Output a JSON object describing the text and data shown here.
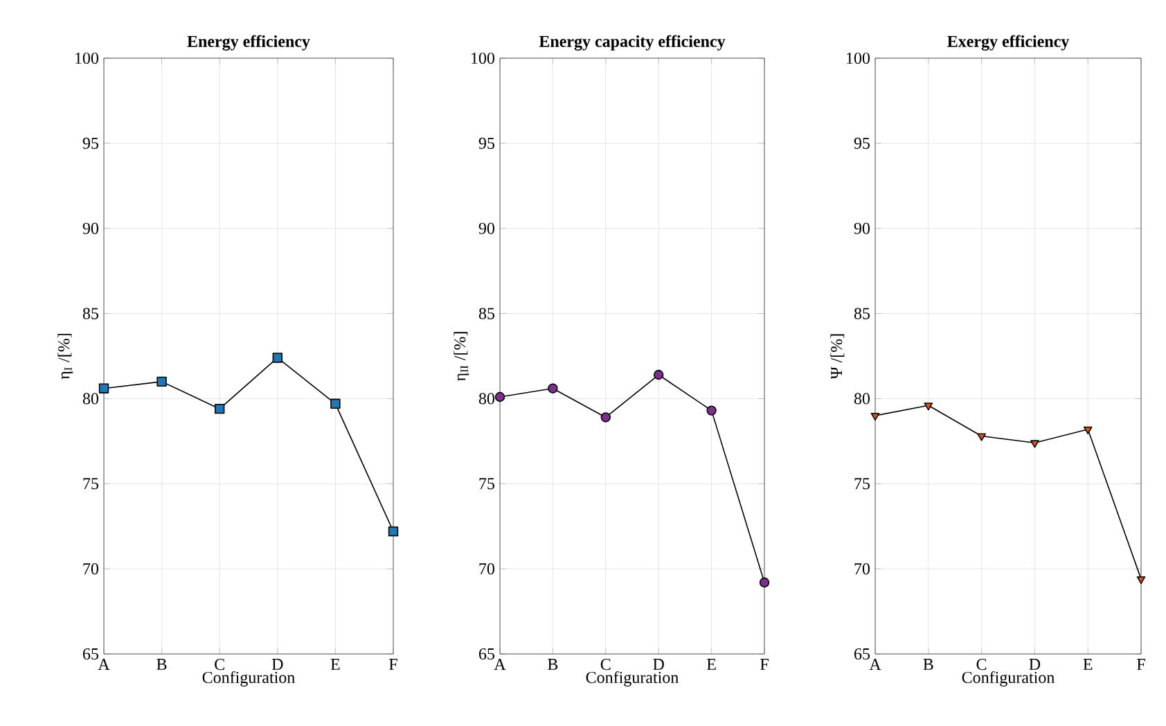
{
  "chart_data": [
    {
      "type": "line",
      "title": "**Energy efficiency**",
      "xlabel": "Configuration",
      "ylabel": "η$_{I}$ /[%]",
      "categories": [
        "A",
        "B",
        "C",
        "D",
        "E",
        "F"
      ],
      "values": [
        80.6,
        81.0,
        79.4,
        82.4,
        79.7,
        72.2
      ],
      "color": "#1f77b4",
      "marker": "square",
      "ylim": [
        65,
        100
      ],
      "yticks": [
        65,
        70,
        75,
        80,
        85,
        90,
        95,
        100
      ],
      "grid": true
    },
    {
      "type": "line",
      "title": "**Energy capacity efficiency**",
      "xlabel": "Configuration",
      "ylabel": "η$_{II}$ /[%]",
      "categories": [
        "A",
        "B",
        "C",
        "D",
        "E",
        "F"
      ],
      "values": [
        80.1,
        80.6,
        78.9,
        81.4,
        79.3,
        69.2
      ],
      "color": "#7e2f8e",
      "marker": "circle",
      "ylim": [
        65,
        100
      ],
      "yticks": [
        65,
        70,
        75,
        80,
        85,
        90,
        95,
        100
      ],
      "grid": true
    },
    {
      "type": "line",
      "title": "**Exergy efficiency**",
      "xlabel": "Configuration",
      "ylabel": "Ψ /[%]",
      "categories": [
        "A",
        "B",
        "C",
        "D",
        "E",
        "F"
      ],
      "values": [
        79.0,
        79.6,
        77.8,
        77.4,
        78.2,
        69.4
      ],
      "color": "#d95319",
      "marker": "triangle",
      "ylim": [
        65,
        100
      ],
      "yticks": [
        65,
        70,
        75,
        80,
        85,
        90,
        95,
        100
      ],
      "grid": true
    }
  ]
}
